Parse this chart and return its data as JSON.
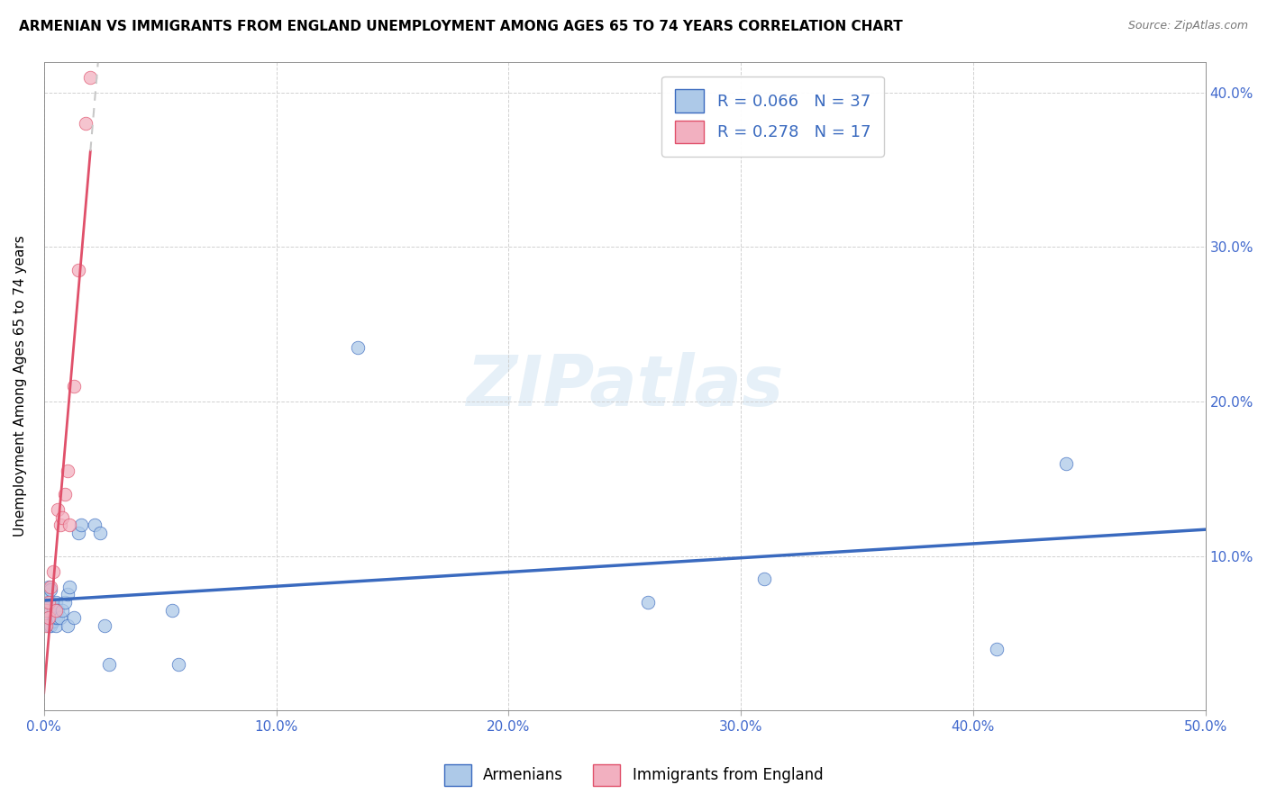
{
  "title": "ARMENIAN VS IMMIGRANTS FROM ENGLAND UNEMPLOYMENT AMONG AGES 65 TO 74 YEARS CORRELATION CHART",
  "source": "Source: ZipAtlas.com",
  "ylabel": "Unemployment Among Ages 65 to 74 years",
  "xlim": [
    0.0,
    0.5
  ],
  "ylim": [
    0.0,
    0.42
  ],
  "xticks": [
    0.0,
    0.1,
    0.2,
    0.3,
    0.4,
    0.5
  ],
  "yticks": [
    0.1,
    0.2,
    0.3,
    0.4
  ],
  "xtick_labels": [
    "0.0%",
    "10.0%",
    "20.0%",
    "30.0%",
    "40.0%",
    "50.0%"
  ],
  "ytick_labels": [
    "10.0%",
    "20.0%",
    "30.0%",
    "40.0%"
  ],
  "armenian_color": "#adc9e8",
  "england_color": "#f2b0c0",
  "trend_armenian_color": "#3a6abf",
  "trend_england_color": "#e0506a",
  "trend_dash_color": "#c8c8c8",
  "R_armenian": 0.066,
  "N_armenian": 37,
  "R_england": 0.278,
  "N_england": 17,
  "armenian_x": [
    0.001,
    0.001,
    0.001,
    0.002,
    0.002,
    0.002,
    0.003,
    0.003,
    0.003,
    0.004,
    0.004,
    0.005,
    0.005,
    0.005,
    0.005,
    0.006,
    0.006,
    0.007,
    0.008,
    0.009,
    0.01,
    0.01,
    0.011,
    0.013,
    0.015,
    0.016,
    0.022,
    0.024,
    0.026,
    0.028,
    0.055,
    0.058,
    0.135,
    0.26,
    0.31,
    0.41,
    0.44
  ],
  "armenian_y": [
    0.065,
    0.07,
    0.075,
    0.055,
    0.06,
    0.08,
    0.055,
    0.07,
    0.078,
    0.058,
    0.065,
    0.055,
    0.06,
    0.065,
    0.07,
    0.06,
    0.065,
    0.06,
    0.065,
    0.07,
    0.055,
    0.075,
    0.08,
    0.06,
    0.115,
    0.12,
    0.12,
    0.115,
    0.055,
    0.03,
    0.065,
    0.03,
    0.235,
    0.07,
    0.085,
    0.04,
    0.16
  ],
  "england_x": [
    0.001,
    0.001,
    0.002,
    0.002,
    0.003,
    0.004,
    0.005,
    0.006,
    0.007,
    0.008,
    0.009,
    0.01,
    0.011,
    0.013,
    0.015,
    0.018,
    0.02
  ],
  "england_y": [
    0.055,
    0.065,
    0.06,
    0.07,
    0.08,
    0.09,
    0.065,
    0.13,
    0.12,
    0.125,
    0.14,
    0.155,
    0.12,
    0.21,
    0.285,
    0.38,
    0.41
  ],
  "trend_eng_solid_end_x": 0.02,
  "trend_eng_dash_end_x": 0.36,
  "marker_size": 110
}
